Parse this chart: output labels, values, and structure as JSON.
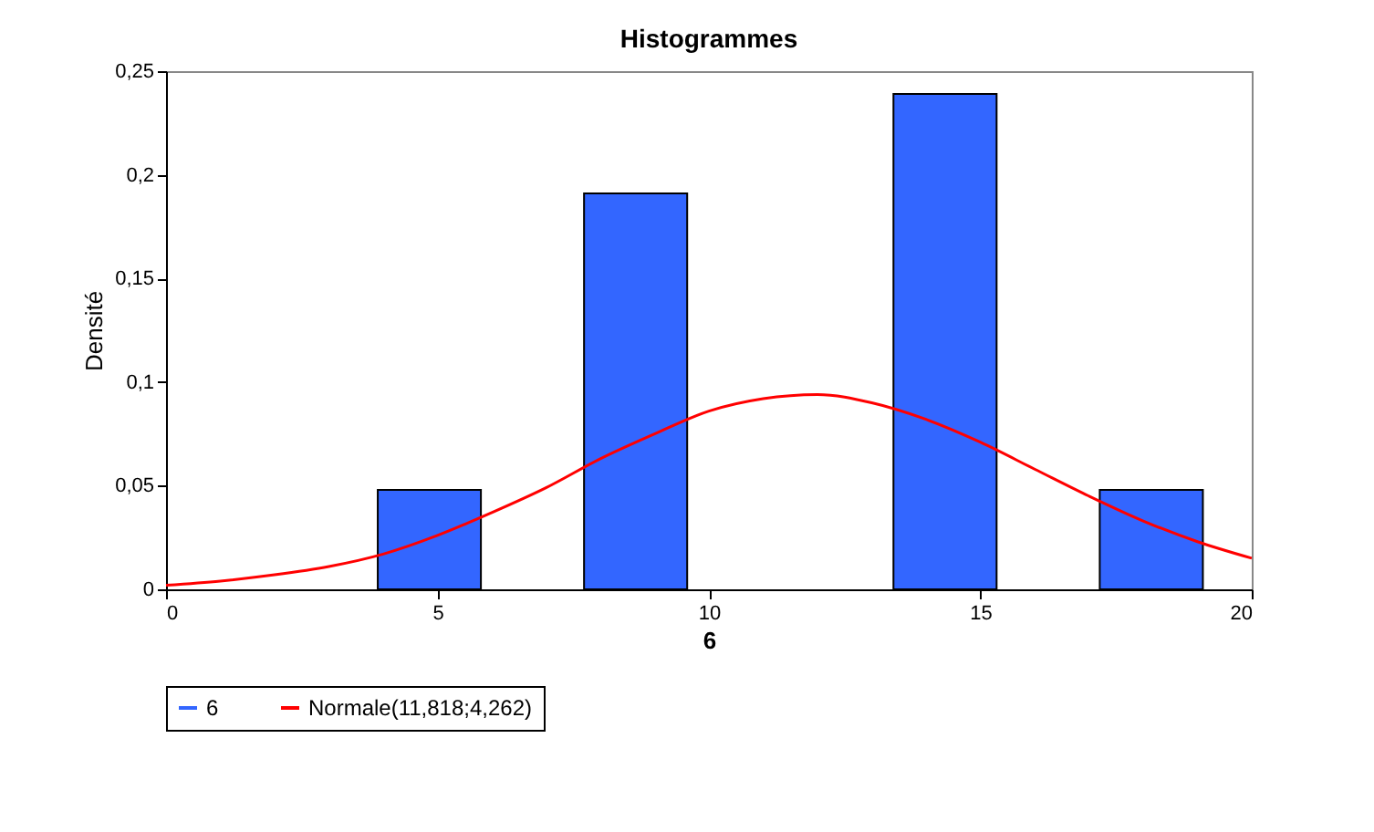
{
  "chart_data": {
    "type": "histogram",
    "title": "Histogrammes",
    "xlabel": "6",
    "ylabel": "Densité",
    "xlim": [
      0,
      20
    ],
    "xticks": [
      0,
      5,
      10,
      15,
      20
    ],
    "ylim": [
      0,
      0.25
    ],
    "yticks": [
      0,
      {
        "value": 0.05,
        "label": "0,05"
      },
      {
        "value": 0.1,
        "label": "0,1"
      },
      {
        "value": 0.15,
        "label": "0,15"
      },
      {
        "value": 0.2,
        "label": "0,2"
      },
      {
        "value": 0.25,
        "label": "0,25"
      }
    ],
    "grid": false,
    "legend": "bottom",
    "series": [
      {
        "name": "6",
        "color": "#3366ff",
        "bins": [
          3.9,
          5.8,
          7.7,
          9.6,
          13.4,
          15.3,
          17.2,
          19.1
        ],
        "values": [
          0.048,
          0,
          0.191,
          0,
          0.239,
          0,
          0.048
        ]
      },
      {
        "name": "Normale(11,818;4,262)",
        "type": "line",
        "color": "#ff0000",
        "x": [
          0,
          1,
          2,
          3,
          4,
          5,
          6,
          7,
          8,
          9,
          10,
          11,
          12,
          13,
          14,
          15,
          16,
          17,
          18,
          19,
          20
        ],
        "values": [
          0.002,
          0.004,
          0.007,
          0.011,
          0.017,
          0.026,
          0.037,
          0.049,
          0.063,
          0.075,
          0.086,
          0.092,
          0.094,
          0.09,
          0.082,
          0.071,
          0.058,
          0.045,
          0.033,
          0.023,
          0.015
        ]
      }
    ]
  }
}
